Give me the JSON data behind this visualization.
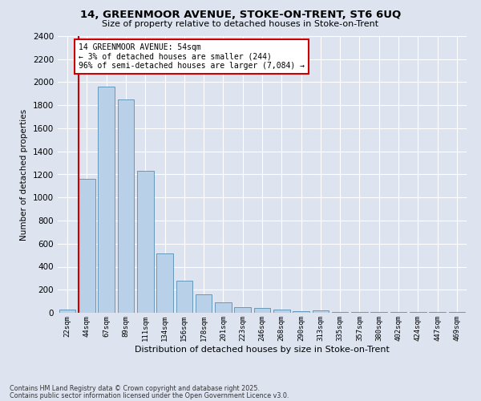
{
  "title_line1": "14, GREENMOOR AVENUE, STOKE-ON-TRENT, ST6 6UQ",
  "title_line2": "Size of property relative to detached houses in Stoke-on-Trent",
  "xlabel": "Distribution of detached houses by size in Stoke-on-Trent",
  "ylabel": "Number of detached properties",
  "categories": [
    "22sqm",
    "44sqm",
    "67sqm",
    "89sqm",
    "111sqm",
    "134sqm",
    "156sqm",
    "178sqm",
    "201sqm",
    "223sqm",
    "246sqm",
    "268sqm",
    "290sqm",
    "313sqm",
    "335sqm",
    "357sqm",
    "380sqm",
    "402sqm",
    "424sqm",
    "447sqm",
    "469sqm"
  ],
  "values": [
    25,
    1160,
    1960,
    1850,
    1230,
    515,
    275,
    160,
    90,
    50,
    40,
    25,
    15,
    20,
    5,
    5,
    5,
    5,
    5,
    5,
    5
  ],
  "bar_color": "#b8d0e8",
  "bar_edge_color": "#6699bb",
  "annotation_text": "14 GREENMOOR AVENUE: 54sqm\n← 3% of detached houses are smaller (244)\n96% of semi-detached houses are larger (7,084) →",
  "annotation_box_color": "#ffffff",
  "annotation_box_edge": "#cc0000",
  "vline_color": "#cc0000",
  "background_color": "#dde4f0",
  "grid_color": "#ffffff",
  "ylim": [
    0,
    2400
  ],
  "yticks": [
    0,
    200,
    400,
    600,
    800,
    1000,
    1200,
    1400,
    1600,
    1800,
    2000,
    2200,
    2400
  ],
  "footer_line1": "Contains HM Land Registry data © Crown copyright and database right 2025.",
  "footer_line2": "Contains public sector information licensed under the Open Government Licence v3.0."
}
